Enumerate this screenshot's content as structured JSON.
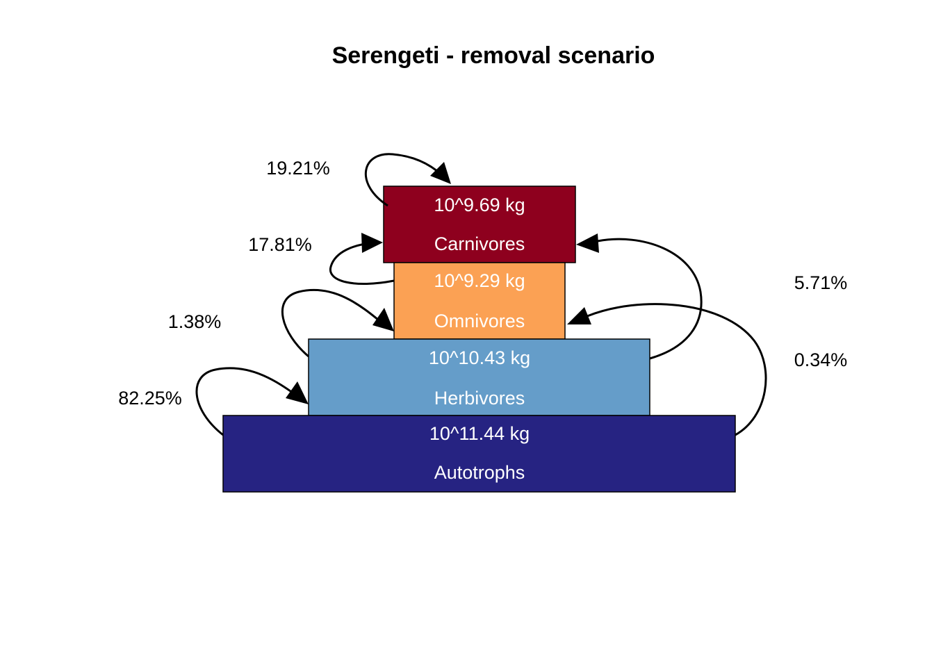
{
  "title": "Serengeti - removal scenario",
  "levels": [
    {
      "name": "Carnivores",
      "biomass": "10^9.69 kg",
      "color": "#8e001e"
    },
    {
      "name": "Omnivores",
      "biomass": "10^9.29 kg",
      "color": "#fba154"
    },
    {
      "name": "Herbivores",
      "biomass": "10^10.43 kg",
      "color": "#659dc9"
    },
    {
      "name": "Autotrophs",
      "biomass": "10^11.44 kg",
      "color": "#262382"
    }
  ],
  "flows": [
    {
      "from": "Omnivores",
      "to": "Carnivores",
      "label": "19.21%"
    },
    {
      "from": "Herbivores",
      "to": "Carnivores",
      "label": "17.81%"
    },
    {
      "from": "Herbivores",
      "to": "Omnivores",
      "label": "1.38%"
    },
    {
      "from": "Autotrophs",
      "to": "Herbivores",
      "label": "82.25%"
    },
    {
      "from": "Herbivores",
      "to": "Carnivores",
      "label": "5.71%"
    },
    {
      "from": "Autotrophs",
      "to": "Omnivores",
      "label": "0.34%"
    }
  ]
}
